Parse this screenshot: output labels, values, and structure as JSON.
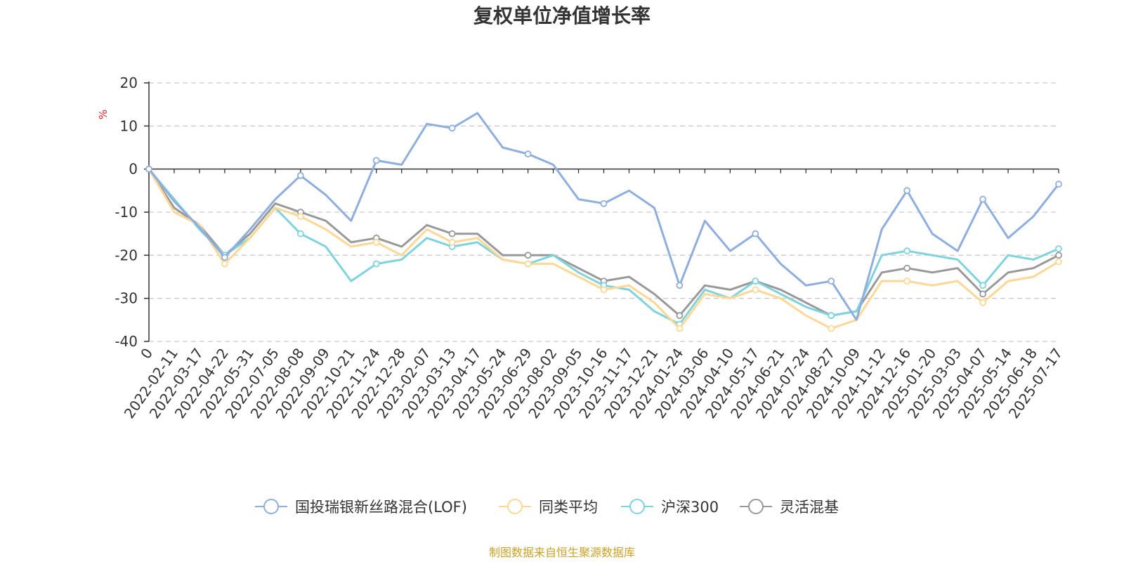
{
  "chart_data": {
    "type": "line",
    "title": "复权单位净值增长率",
    "ylabel": "%",
    "ylim": [
      -40,
      20
    ],
    "y_ticks": [
      "20",
      "10",
      "0",
      "-10",
      "-20",
      "-30",
      "-40"
    ],
    "x_ticks": [
      "0",
      "2022-02-11",
      "2022-03-17",
      "2022-04-22",
      "2022-05-31",
      "2022-07-05",
      "2022-08-08",
      "2022-09-09",
      "2022-10-21",
      "2022-11-24",
      "2022-12-28",
      "2023-02-07",
      "2023-03-13",
      "2023-04-17",
      "2023-05-24",
      "2023-06-29",
      "2023-08-02",
      "2023-09-05",
      "2023-10-16",
      "2023-11-17",
      "2023-12-21",
      "2024-01-24",
      "2024-03-06",
      "2024-04-10",
      "2024-05-17",
      "2024-06-21",
      "2024-07-24",
      "2024-08-27",
      "2024-10-09",
      "2024-11-12",
      "2024-12-16",
      "2025-01-20",
      "2025-03-03",
      "2025-04-07",
      "2025-05-14",
      "2025-06-18",
      "2025-07-17"
    ],
    "grid": true,
    "legend_position": "bottom",
    "series": [
      {
        "name": "国投瑞银新丝路混合(LOF)",
        "color": "#8eaede",
        "values": [
          0,
          -7.5,
          -13.5,
          -20.5,
          -14,
          -7,
          -1.5,
          -6,
          -12,
          2,
          1,
          10.5,
          9.5,
          13,
          5,
          3.5,
          1,
          -7,
          -8,
          -5,
          -9,
          -27,
          -12,
          -19,
          -15,
          -22,
          -27,
          -26,
          -35,
          -14,
          -5,
          -15,
          -19,
          -7,
          -16,
          -11,
          -3.5
        ]
      },
      {
        "name": "同类平均",
        "color": "#fcd796",
        "values": [
          0,
          -10,
          -13,
          -22,
          -16,
          -9,
          -11,
          -14,
          -18,
          -17,
          -20,
          -14,
          -17,
          -16,
          -21,
          -22,
          -22,
          -25,
          -28,
          -27,
          -31,
          -37,
          -29,
          -30,
          -28,
          -30,
          -34,
          -37,
          -35,
          -26,
          -26,
          -27,
          -26,
          -31,
          -26,
          -25,
          -21.5
        ]
      },
      {
        "name": "沪深300",
        "color": "#7fd3dc",
        "values": [
          0,
          -7,
          -14,
          -20,
          -16,
          -9,
          -15,
          -18,
          -26,
          -22,
          -21,
          -16,
          -18,
          -17,
          -21,
          -22,
          -20,
          -24,
          -27,
          -28,
          -33,
          -36,
          -28,
          -30,
          -26,
          -29,
          -32,
          -34,
          -33,
          -20,
          -19,
          -20,
          -21,
          -27,
          -20,
          -21,
          -18.5
        ]
      },
      {
        "name": "灵活混基",
        "color": "#999999",
        "values": [
          0,
          -9,
          -13,
          -20,
          -15,
          -8,
          -10,
          -12,
          -17,
          -16,
          -18,
          -13,
          -15,
          -15,
          -20,
          -20,
          -20,
          -23,
          -26,
          -25,
          -29,
          -34,
          -27,
          -28,
          -26,
          -28,
          -31,
          -34,
          -33,
          -24,
          -23,
          -24,
          -23,
          -29,
          -24,
          -23,
          -20
        ]
      }
    ]
  },
  "footer": "制图数据来自恒生聚源数据库"
}
